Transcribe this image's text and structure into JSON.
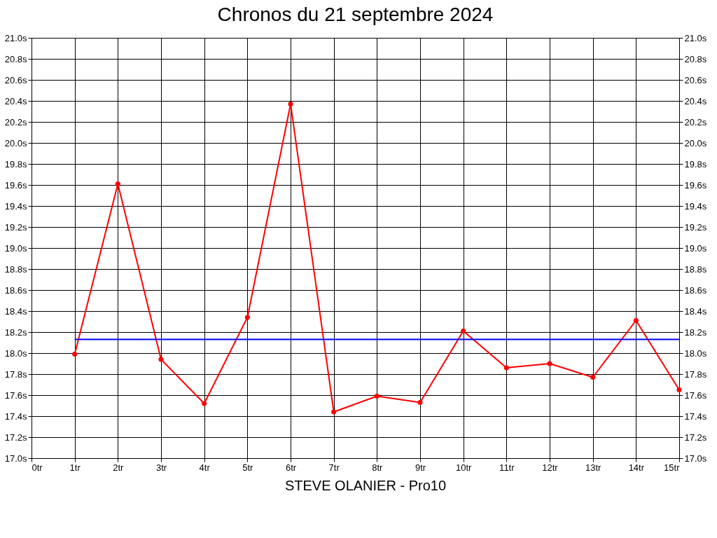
{
  "chart_data": {
    "type": "line",
    "title": "Chronos du 21 septembre 2024",
    "x": [
      1,
      2,
      3,
      4,
      5,
      6,
      7,
      8,
      9,
      10,
      11,
      12,
      13,
      14,
      15
    ],
    "series": [
      {
        "color": "#ff0000",
        "marker": "circle",
        "values": [
          17.99,
          19.61,
          17.94,
          17.52,
          18.34,
          20.37,
          17.44,
          17.59,
          17.53,
          18.21,
          17.86,
          17.9,
          17.77,
          18.31,
          17.65
        ]
      },
      {
        "color": "#0000ff",
        "marker": "none",
        "x": [
          1,
          15
        ],
        "values": [
          18.13,
          18.13
        ]
      }
    ],
    "xlim": [
      0,
      15
    ],
    "xticks": [
      {
        "value": 0,
        "label": "0tr"
      },
      {
        "value": 1,
        "label": "1tr"
      },
      {
        "value": 2,
        "label": "2tr"
      },
      {
        "value": 3,
        "label": "3tr"
      },
      {
        "value": 4,
        "label": "4tr"
      },
      {
        "value": 5,
        "label": "5tr"
      },
      {
        "value": 6,
        "label": "6tr"
      },
      {
        "value": 7,
        "label": "7tr"
      },
      {
        "value": 8,
        "label": "8tr"
      },
      {
        "value": 9,
        "label": "9tr"
      },
      {
        "value": 10,
        "label": "10tr"
      },
      {
        "value": 11,
        "label": "11tr"
      },
      {
        "value": 12,
        "label": "12tr"
      },
      {
        "value": 13,
        "label": "13tr"
      },
      {
        "value": 14,
        "label": "14tr"
      },
      {
        "value": 15,
        "label": "15tr"
      }
    ],
    "ylim": [
      17,
      21
    ],
    "yticks": [
      {
        "value": 17,
        "label": "17.0s"
      },
      {
        "value": 17.2,
        "label": "17.2s"
      },
      {
        "value": 17.4,
        "label": "17.4s"
      },
      {
        "value": 17.6,
        "label": "17.6s"
      },
      {
        "value": 17.8,
        "label": "17.8s"
      },
      {
        "value": 18,
        "label": "18.0s"
      },
      {
        "value": 18.2,
        "label": "18.2s"
      },
      {
        "value": 18.4,
        "label": "18.4s"
      },
      {
        "value": 18.6,
        "label": "18.6s"
      },
      {
        "value": 18.8,
        "label": "18.8s"
      },
      {
        "value": 19,
        "label": "19.0s"
      },
      {
        "value": 19.2,
        "label": "19.2s"
      },
      {
        "value": 19.4,
        "label": "19.4s"
      },
      {
        "value": 19.6,
        "label": "19.6s"
      },
      {
        "value": 19.8,
        "label": "19.8s"
      },
      {
        "value": 20,
        "label": "20.0s"
      },
      {
        "value": 20.2,
        "label": "20.2s"
      },
      {
        "value": 20.4,
        "label": "20.4s"
      },
      {
        "value": 20.6,
        "label": "20.6s"
      },
      {
        "value": 20.8,
        "label": "20.8s"
      },
      {
        "value": 21,
        "label": "21.0s"
      }
    ],
    "y2lim": [
      17,
      21
    ],
    "y2ticks": [
      {
        "value": 17,
        "label": "17.0s"
      },
      {
        "value": 17.2,
        "label": "17.2s"
      },
      {
        "value": 17.4,
        "label": "17.4s"
      },
      {
        "value": 17.6,
        "label": "17.6s"
      },
      {
        "value": 17.8,
        "label": "17.8s"
      },
      {
        "value": 18,
        "label": "18.0s"
      },
      {
        "value": 18.2,
        "label": "18.2s"
      },
      {
        "value": 18.4,
        "label": "18.4s"
      },
      {
        "value": 18.6,
        "label": "18.6s"
      },
      {
        "value": 18.8,
        "label": "18.8s"
      },
      {
        "value": 19,
        "label": "19.0s"
      },
      {
        "value": 19.2,
        "label": "19.2s"
      },
      {
        "value": 19.4,
        "label": "19.4s"
      },
      {
        "value": 19.6,
        "label": "19.6s"
      },
      {
        "value": 19.8,
        "label": "19.8s"
      },
      {
        "value": 20,
        "label": "20.0s"
      },
      {
        "value": 20.2,
        "label": "20.2s"
      },
      {
        "value": 20.4,
        "label": "20.4s"
      },
      {
        "value": 20.6,
        "label": "20.6s"
      },
      {
        "value": 20.8,
        "label": "20.8s"
      },
      {
        "value": 21,
        "label": "21.0s"
      }
    ],
    "grid": true,
    "line_style": "solid",
    "annotations": [
      "STEVE OLANIER - Pro10"
    ]
  }
}
